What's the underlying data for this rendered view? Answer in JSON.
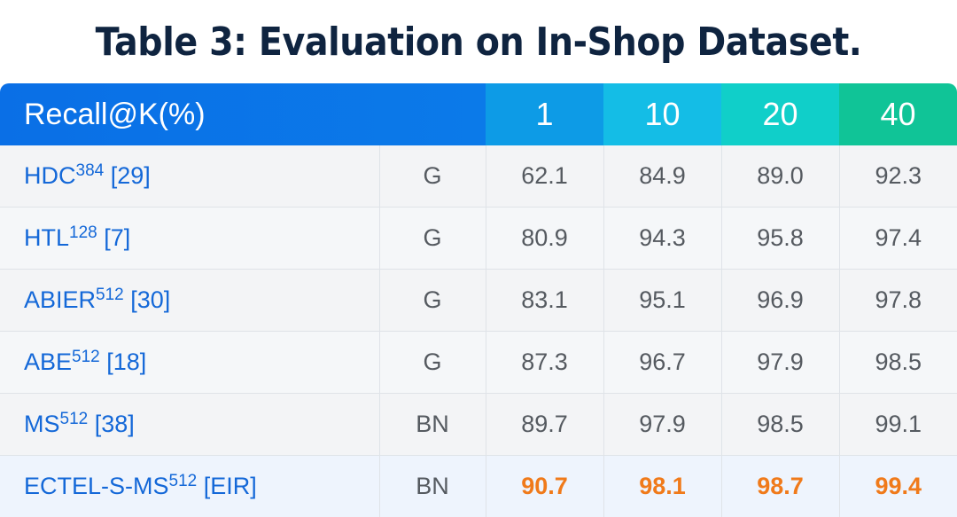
{
  "title": "Table 3: Evaluation on In-Shop Dataset.",
  "header": {
    "metric": "Recall@K(%)",
    "k": [
      "1",
      "10",
      "20",
      "40"
    ]
  },
  "rows": [
    {
      "name": "HDC",
      "dim": "384",
      "ref": " [29]",
      "type": "G",
      "values": [
        "62.1",
        "84.9",
        "89.0",
        "92.3"
      ]
    },
    {
      "name": "HTL",
      "dim": "128",
      "ref": " [7]",
      "type": "G",
      "values": [
        "80.9",
        "94.3",
        "95.8",
        "97.4"
      ]
    },
    {
      "name": "ABIER",
      "dim": "512",
      "ref": " [30]",
      "type": "G",
      "values": [
        "83.1",
        "95.1",
        "96.9",
        "97.8"
      ]
    },
    {
      "name": "ABE",
      "dim": "512",
      "ref": " [18]",
      "type": "G",
      "values": [
        "87.3",
        "96.7",
        "97.9",
        "98.5"
      ]
    },
    {
      "name": "MS",
      "dim": "512",
      "ref": " [38]",
      "type": "BN",
      "values": [
        "89.7",
        "97.9",
        "98.5",
        "99.1"
      ]
    },
    {
      "name": "ECTEL-S-MS",
      "dim": "512",
      "ref": " [EIR]",
      "type": "BN",
      "values": [
        "90.7",
        "98.1",
        "98.7",
        "99.4"
      ]
    }
  ],
  "colors": {
    "highlight": "#f07a1a",
    "method_text": "#1468d8",
    "header_blue": "#0a6fe6",
    "header_green": "#10c497"
  }
}
